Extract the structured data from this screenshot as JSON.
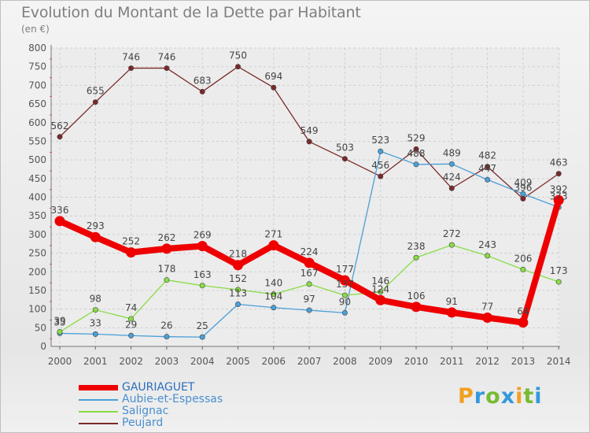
{
  "title": "Evolution du Montant de la Dette par Habitant",
  "unit": "(en €)",
  "brand": "Proxiti",
  "chart_data": {
    "type": "line",
    "title": "Evolution du Montant de la Dette par Habitant",
    "ylabel": "(en €)",
    "xlabel": "",
    "ylim": [
      0,
      800
    ],
    "yticks": [
      0,
      50,
      100,
      150,
      200,
      250,
      300,
      350,
      400,
      450,
      500,
      550,
      600,
      650,
      700,
      750,
      800
    ],
    "grid": true,
    "legend": "bottom-left",
    "x": [
      "2000",
      "2001",
      "2002",
      "2003",
      "2004",
      "2005",
      "2006",
      "2007",
      "2008",
      "2009",
      "2010",
      "2011",
      "2012",
      "2013",
      "2014"
    ],
    "series": [
      {
        "name": "GAURIAGUET",
        "color": "#ee0000",
        "values": [
          336,
          293,
          252,
          262,
          269,
          218,
          271,
          224,
          177,
          124,
          106,
          91,
          77,
          64,
          392
        ],
        "labels": [
          "336",
          "293",
          "252",
          "262",
          "269",
          "218",
          "271",
          "224",
          "177",
          "124",
          "106",
          "91",
          "77",
          "64",
          "392"
        ]
      },
      {
        "name": "Aubie-et-Espessas",
        "color": "#4a9fd8",
        "values": [
          35,
          33,
          29,
          26,
          25,
          113,
          104,
          97,
          90,
          523,
          488,
          489,
          447,
          409,
          373
        ],
        "labels": [
          "35",
          "33",
          "29",
          "26",
          "25",
          "113",
          "104",
          "97",
          "90",
          "523",
          "488",
          "489",
          "447",
          "409",
          "373"
        ]
      },
      {
        "name": "Salignac",
        "color": "#88dd44",
        "values": [
          39,
          98,
          74,
          178,
          163,
          152,
          140,
          167,
          137,
          146,
          238,
          272,
          243,
          206,
          173
        ],
        "labels": [
          "39",
          "98",
          "74",
          "178",
          "163",
          "152",
          "140",
          "167",
          "137",
          "146",
          "238",
          "272",
          "243",
          "206",
          "173"
        ]
      },
      {
        "name": "Peujard",
        "color": "#7a2a2a",
        "values": [
          562,
          655,
          746,
          746,
          683,
          750,
          694,
          549,
          503,
          456,
          529,
          424,
          482,
          396,
          463
        ],
        "labels": [
          "562",
          "655",
          "746",
          "746",
          "683",
          "750",
          "694",
          "549",
          "503",
          "456",
          "529",
          "424",
          "482",
          "396",
          "463"
        ]
      }
    ]
  }
}
